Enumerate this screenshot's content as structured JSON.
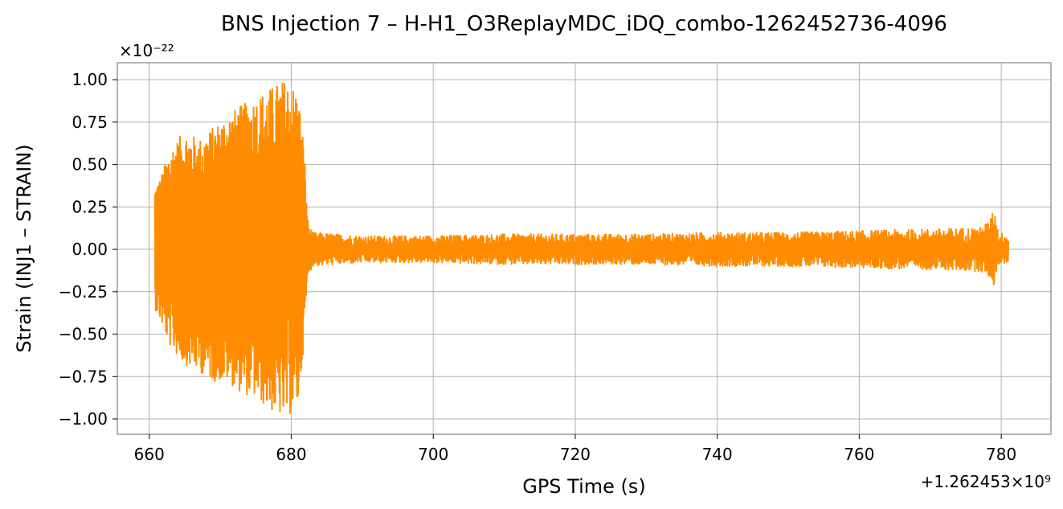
{
  "chart_data": {
    "type": "line",
    "title": "BNS Injection 7 – H-H1_O3ReplayMDC_iDQ_combo-1262452736-4096",
    "xlabel": "GPS Time (s)",
    "ylabel": "Strain (INJ1 – STRAIN)",
    "x_offset_label": "+1.262453×10⁹",
    "y_scale_label": "×10⁻²²",
    "xlim": [
      655.5,
      787.0
    ],
    "ylim": [
      -1.09,
      1.1
    ],
    "x_ticks": [
      660,
      680,
      700,
      720,
      740,
      760,
      780
    ],
    "x_tick_labels": [
      "660",
      "680",
      "700",
      "720",
      "740",
      "760",
      "780"
    ],
    "y_ticks": [
      1.0,
      0.75,
      0.5,
      0.25,
      0.0,
      -0.25,
      -0.5,
      -0.75,
      -1.0
    ],
    "y_tick_labels": [
      "1.00",
      "0.75",
      "0.50",
      "0.25",
      "0.00",
      "−0.25",
      "−0.50",
      "−0.75",
      "−1.00"
    ],
    "grid": true,
    "series": [
      {
        "color": "#ff8c00",
        "envelope": {
          "x": [
            660.8,
            661.5,
            663.0,
            665.0,
            667.0,
            669.0,
            671.0,
            673.0,
            675.0,
            677.0,
            679.0,
            680.0,
            681.0,
            681.8,
            682.3,
            683.0,
            690.0,
            700.0,
            710.0,
            720.0,
            730.0,
            740.0,
            750.0,
            760.0,
            770.0,
            777.0,
            778.5,
            779.0,
            779.6,
            781.0
          ],
          "max": [
            0.38,
            0.42,
            0.6,
            0.7,
            0.65,
            0.72,
            0.8,
            0.85,
            0.9,
            0.95,
            1.0,
            0.98,
            0.92,
            0.62,
            0.18,
            0.1,
            0.08,
            0.08,
            0.09,
            0.09,
            0.09,
            0.1,
            0.1,
            0.11,
            0.12,
            0.13,
            0.18,
            0.28,
            0.1,
            0.09
          ],
          "min": [
            -0.35,
            -0.42,
            -0.58,
            -0.68,
            -0.72,
            -0.78,
            -0.78,
            -0.85,
            -0.88,
            -0.95,
            -1.0,
            -0.97,
            -0.92,
            -0.55,
            -0.16,
            -0.1,
            -0.08,
            -0.08,
            -0.09,
            -0.09,
            -0.09,
            -0.1,
            -0.1,
            -0.11,
            -0.12,
            -0.13,
            -0.17,
            -0.22,
            -0.09,
            -0.08
          ]
        }
      }
    ]
  }
}
